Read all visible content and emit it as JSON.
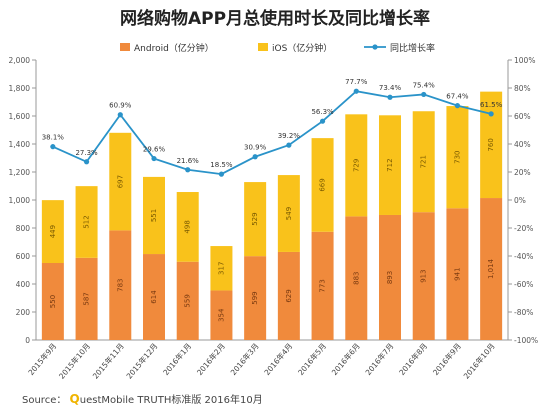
{
  "chart_data": {
    "type": "bar",
    "title": "网络购物APP月总使用时长及同比增长率",
    "categories": [
      "2015年9月",
      "2015年10月",
      "2015年11月",
      "2015年12月",
      "2016年1月",
      "2016年2月",
      "2016年3月",
      "2016年4月",
      "2016年5月",
      "2016年6月",
      "2016年7月",
      "2016年8月",
      "2016年9月",
      "2016年10月"
    ],
    "series": [
      {
        "name": "Android（亿分钟）",
        "type": "bar",
        "stack": "total",
        "color": "#f08a3c",
        "values": [
          550,
          587,
          783,
          614,
          559,
          354,
          599,
          629,
          773,
          883,
          893,
          913,
          941,
          1014
        ]
      },
      {
        "name": "iOS（亿分钟）",
        "type": "bar",
        "stack": "total",
        "color": "#f9c21b",
        "values": [
          449,
          512,
          697,
          551,
          498,
          317,
          529,
          549,
          669,
          729,
          712,
          721,
          730,
          760
        ]
      },
      {
        "name": "同比增长率",
        "type": "line",
        "axis": "right",
        "color": "#2a93c9",
        "values": [
          38.1,
          27.3,
          60.9,
          29.6,
          21.6,
          18.5,
          30.9,
          39.2,
          56.3,
          77.7,
          73.4,
          75.4,
          67.4,
          61.5
        ]
      }
    ],
    "line_labels": [
      "38.1%",
      "27.3%",
      "60.9%",
      "29.6%",
      "21.6%",
      "18.5%",
      "30.9%",
      "39.2%",
      "56.3%",
      "77.7%",
      "73.4%",
      "75.4%",
      "67.4%",
      "61.5%"
    ],
    "bar_labels_bottom": [
      "550",
      "587",
      "783",
      "614",
      "559",
      "354",
      "599",
      "629",
      "773",
      "883",
      "893",
      "913",
      "941",
      "1,014"
    ],
    "bar_labels_top": [
      "449",
      "512",
      "697",
      "551",
      "498",
      "317",
      "529",
      "549",
      "669",
      "729",
      "712",
      "721",
      "730",
      "760"
    ],
    "y_left": {
      "min": 0,
      "max": 2000,
      "ticks": [
        "0",
        "200",
        "400",
        "600",
        "800",
        "1,000",
        "1,200",
        "1,400",
        "1,600",
        "1,800",
        "2,000"
      ]
    },
    "y_right": {
      "min": -100,
      "max": 100,
      "ticks": [
        "-100%",
        "-80%",
        "-60%",
        "-40%",
        "-20%",
        "0%",
        "20%",
        "40%",
        "60%",
        "80%",
        "100%"
      ]
    },
    "legend": "top",
    "grid": false
  },
  "source": {
    "prefix": "Source：",
    "brand_initial": "Q",
    "text": "uestMobile TRUTH标准版 2016年10月"
  }
}
